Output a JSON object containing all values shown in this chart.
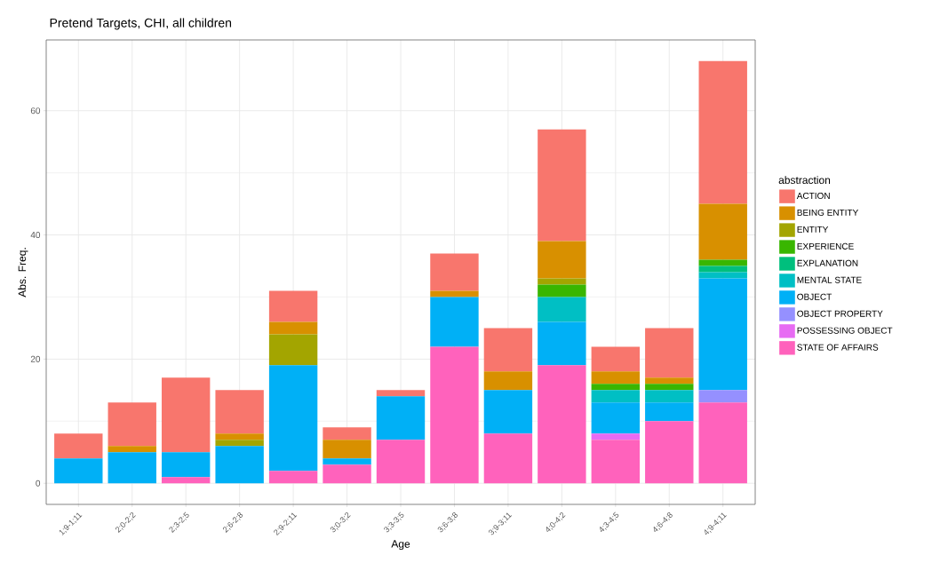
{
  "chart_data": {
    "type": "bar",
    "stacked": true,
    "title": "Pretend Targets, CHI, all children",
    "xlabel": "Age",
    "ylabel": "Abs. Freq.",
    "legend_title": "abstraction",
    "legend": "right",
    "grid": true,
    "categories": [
      "1;9-1;11",
      "2;0-2;2",
      "2;3-2;5",
      "2;6-2;8",
      "2;9-2;11",
      "3;0-3;2",
      "3;3-3;5",
      "3;6-3;8",
      "3;9-3;11",
      "4;0-4;2",
      "4;3-4;5",
      "4;6-4;8",
      "4;9-4;11"
    ],
    "ylim": [
      -3.4,
      71.4
    ],
    "yticks": [
      0,
      20,
      40,
      60
    ],
    "series": [
      {
        "name": "STATE OF AFFAIRS",
        "color": "#ff62bc",
        "values": [
          0,
          0,
          1,
          0,
          2,
          3,
          7,
          22,
          8,
          19,
          7,
          10,
          13
        ]
      },
      {
        "name": "POSSESSING OBJECT",
        "color": "#e76bf3",
        "values": [
          0,
          0,
          0,
          0,
          0,
          0,
          0,
          0,
          0,
          0,
          1,
          0,
          0
        ]
      },
      {
        "name": "OBJECT PROPERTY",
        "color": "#9590ff",
        "values": [
          0,
          0,
          0,
          0,
          0,
          0,
          0,
          0,
          0,
          0,
          0,
          0,
          2
        ]
      },
      {
        "name": "OBJECT",
        "color": "#00b0f6",
        "values": [
          4,
          5,
          4,
          6,
          17,
          1,
          7,
          8,
          7,
          7,
          5,
          3,
          18
        ]
      },
      {
        "name": "MENTAL STATE",
        "color": "#00bfc4",
        "values": [
          0,
          0,
          0,
          0,
          0,
          0,
          0,
          0,
          0,
          4,
          2,
          2,
          1
        ]
      },
      {
        "name": "EXPLANATION",
        "color": "#00bf7d",
        "values": [
          0,
          0,
          0,
          0,
          0,
          0,
          0,
          0,
          0,
          0,
          0,
          0,
          1
        ]
      },
      {
        "name": "EXPERIENCE",
        "color": "#39b600",
        "values": [
          0,
          0,
          0,
          0,
          0,
          0,
          0,
          0,
          0,
          2,
          1,
          1,
          1
        ]
      },
      {
        "name": "ENTITY",
        "color": "#a3a500",
        "values": [
          0,
          0,
          0,
          1,
          5,
          0,
          0,
          0,
          0,
          1,
          0,
          0,
          0
        ]
      },
      {
        "name": "BEING ENTITY",
        "color": "#d89000",
        "values": [
          0,
          1,
          0,
          1,
          2,
          3,
          0,
          1,
          3,
          6,
          2,
          1,
          9
        ]
      },
      {
        "name": "ACTION",
        "color": "#f8766d",
        "values": [
          4,
          7,
          12,
          7,
          5,
          2,
          1,
          6,
          7,
          18,
          4,
          8,
          23
        ]
      }
    ]
  }
}
